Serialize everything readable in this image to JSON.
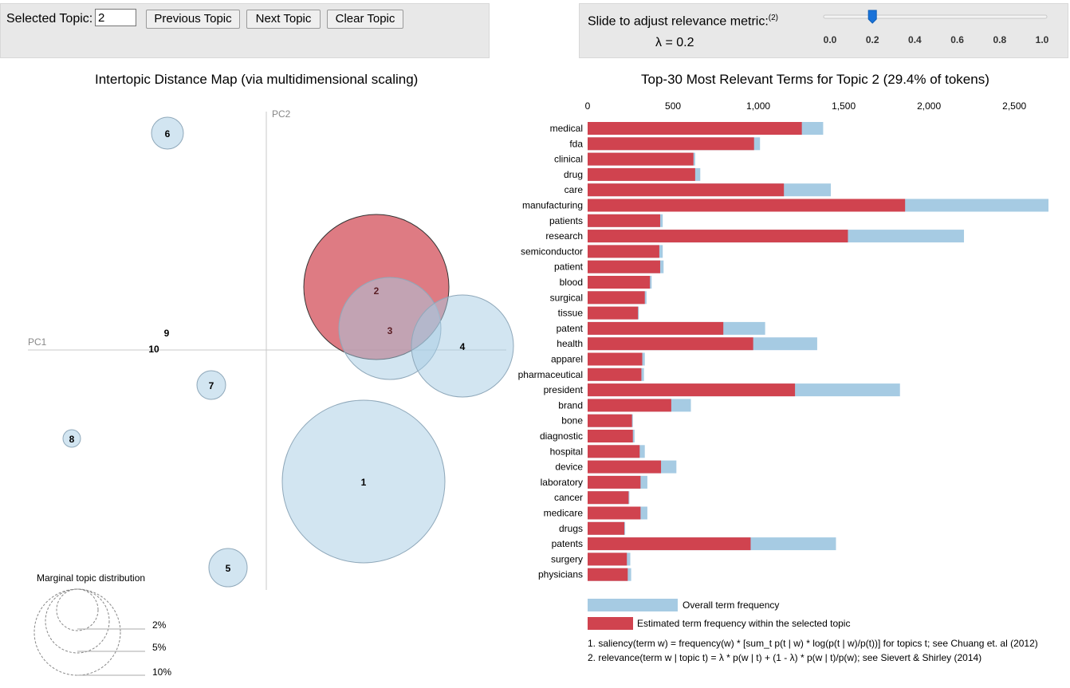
{
  "controls": {
    "selected_topic_label": "Selected Topic:",
    "selected_topic_value": "2",
    "prev_label": "Previous Topic",
    "next_label": "Next Topic",
    "clear_label": "Clear Topic",
    "slider_label": "Slide to adjust relevance metric:",
    "slider_footnote": "(2)",
    "lambda_text": "λ = 0.2",
    "lambda_value": 0.2,
    "slider_ticks": [
      "0.0",
      "0.2",
      "0.4",
      "0.6",
      "0.8",
      "1.0"
    ]
  },
  "map": {
    "title": "Intertopic Distance Map (via multidimensional scaling)",
    "pc1": "PC1",
    "pc2": "PC2",
    "selected_topic": "2",
    "topics": [
      "1",
      "2",
      "3",
      "4",
      "5",
      "6",
      "7",
      "8",
      "9",
      "10"
    ],
    "marginal_title": "Marginal topic distribution",
    "marginal_labels": [
      "2%",
      "5%",
      "10%"
    ]
  },
  "bar_chart": {
    "title": "Top-30 Most Relevant Terms for Topic 2 (29.4% of tokens)",
    "x_ticks": [
      "0",
      "500",
      "1,000",
      "1,500",
      "2,000",
      "2,500"
    ],
    "colors": {
      "overall": "#a6cbe3",
      "topic": "#d0434f"
    }
  },
  "chart_data": {
    "type": "bar",
    "orientation": "horizontal",
    "title": "Top-30 Most Relevant Terms for Topic 2 (29.4% of tokens)",
    "xlim": [
      0,
      2700
    ],
    "categories": [
      "medical",
      "fda",
      "clinical",
      "drug",
      "care",
      "manufacturing",
      "patients",
      "research",
      "semiconductor",
      "patient",
      "blood",
      "surgical",
      "tissue",
      "patent",
      "health",
      "apparel",
      "pharmaceutical",
      "president",
      "brand",
      "bone",
      "diagnostic",
      "hospital",
      "device",
      "laboratory",
      "cancer",
      "medicare",
      "drugs",
      "patents",
      "surgery",
      "physicians"
    ],
    "series": [
      {
        "name": "Overall term frequency",
        "values": [
          1380,
          1010,
          630,
          660,
          1425,
          2700,
          440,
          2205,
          440,
          445,
          375,
          345,
          300,
          1040,
          1345,
          335,
          330,
          1830,
          605,
          265,
          275,
          335,
          520,
          350,
          245,
          350,
          220,
          1455,
          250,
          255
        ]
      },
      {
        "name": "Estimated term frequency within the selected topic",
        "values": [
          1255,
          975,
          620,
          630,
          1150,
          1860,
          425,
          1525,
          420,
          425,
          365,
          335,
          295,
          795,
          970,
          320,
          315,
          1215,
          490,
          260,
          265,
          305,
          430,
          310,
          240,
          310,
          215,
          955,
          230,
          235
        ]
      }
    ]
  },
  "legend": {
    "overall": "Overall term frequency",
    "topic": "Estimated term frequency within the selected topic"
  },
  "footnotes": {
    "saliency": "1. saliency(term w) = frequency(w) * [sum_t p(t | w) * log(p(t | w)/p(t))] for topics t; see Chuang et. al (2012)",
    "relevance": "2. relevance(term w | topic t) = λ * p(w | t) + (1 - λ) * p(w | t)/p(w); see Sievert & Shirley (2014)"
  }
}
